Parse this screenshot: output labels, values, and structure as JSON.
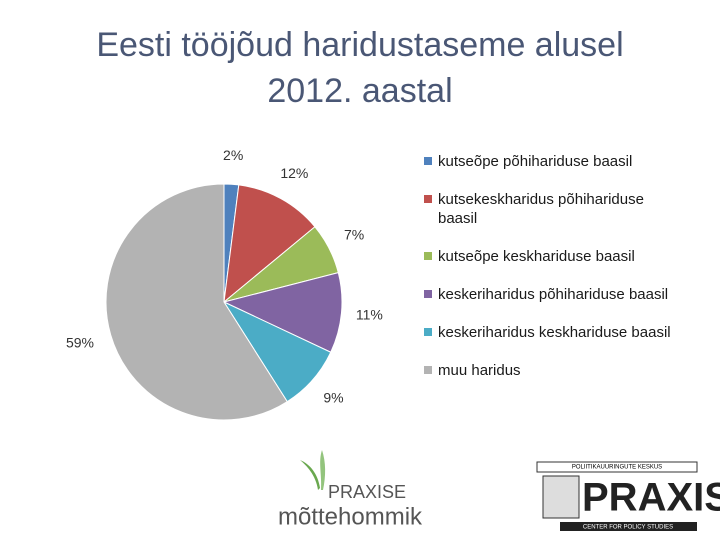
{
  "chart_data": {
    "type": "pie",
    "title": "Eesti tööjõud haridustaseme alusel 2012. aastal",
    "categories": [
      "kutseõpe põhihariduse baasil",
      "kutsekeskharidus põhihariduse baasil",
      "kutseõpe keskhariduse baasil",
      "keskeriharidus põhihariduse baasil",
      "keskeriharidus keskhariduse baasil",
      "muu haridus"
    ],
    "values": [
      2,
      12,
      7,
      11,
      9,
      59
    ],
    "value_labels": [
      "2%",
      "12%",
      "7%",
      "11%",
      "9%",
      "59%"
    ],
    "colors": [
      "#4f81bd",
      "#c0504d",
      "#9bbb59",
      "#8064a2",
      "#4bacc6",
      "#b3b3b3"
    ],
    "legend": "right"
  },
  "logos": {
    "left": {
      "line1": "PRAXISE",
      "line2": "mõttehommik"
    },
    "right": {
      "top": "POLIITIKAUURINGUTE KESKUS",
      "name": "PRAXIS",
      "bottom": "CENTER FOR POLICY STUDIES"
    }
  }
}
